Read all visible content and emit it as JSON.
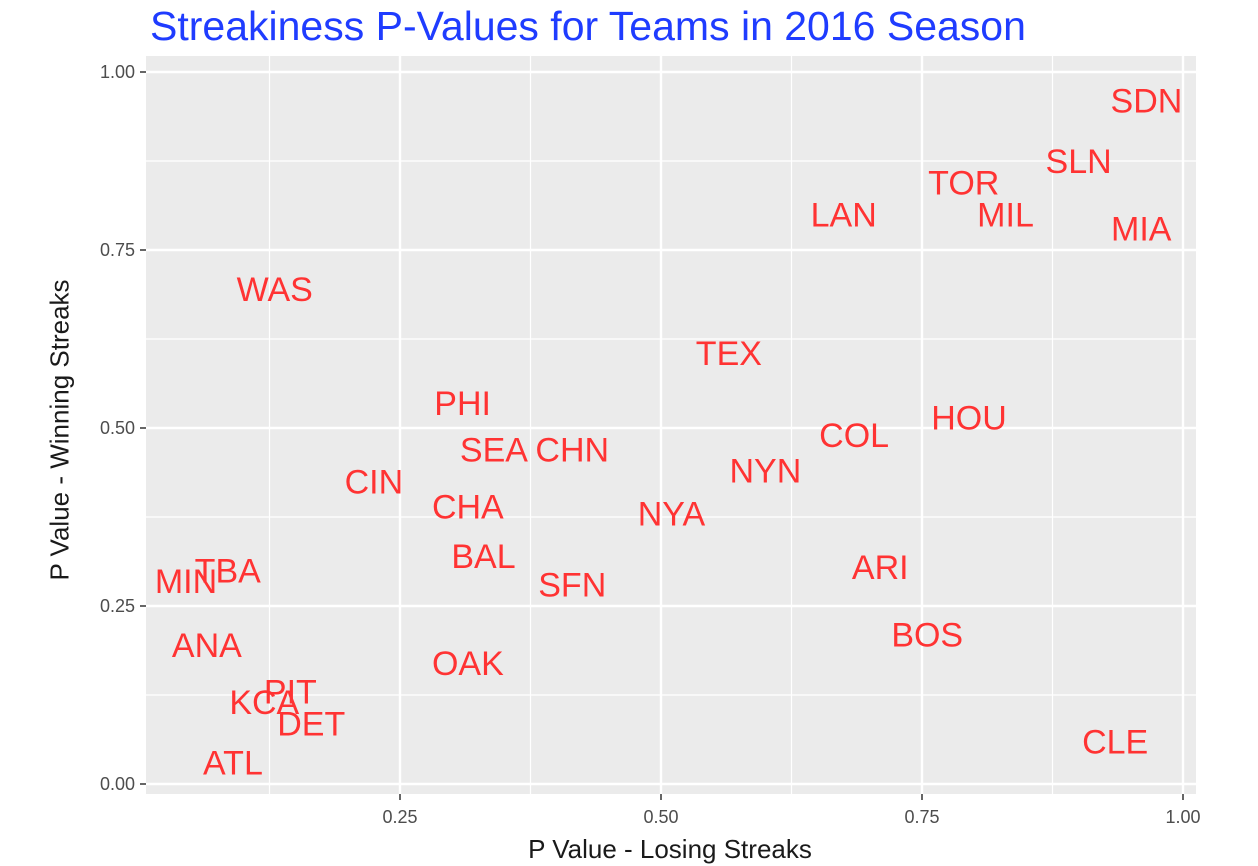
{
  "chart_data": {
    "type": "scatter",
    "title": "Streakiness P-Values for Teams in 2016 Season",
    "xlabel": "P Value - Losing Streaks",
    "ylabel": "P Value - Winning Streaks",
    "xlim": [
      0.0,
      1.0
    ],
    "ylim": [
      0.0,
      1.0
    ],
    "x_ticks": [
      0.25,
      0.5,
      0.75,
      1.0
    ],
    "x_tick_labels": [
      "0.25",
      "0.50",
      "0.75",
      "1.00"
    ],
    "y_ticks": [
      0.0,
      0.25,
      0.5,
      0.75,
      1.0
    ],
    "y_tick_labels": [
      "0.00",
      "0.25",
      "0.50",
      "0.75",
      "1.00"
    ],
    "grid": true,
    "label_color": "#ff3333",
    "points": [
      {
        "label": "SDN",
        "x": 0.965,
        "y": 0.96
      },
      {
        "label": "SLN",
        "x": 0.9,
        "y": 0.875
      },
      {
        "label": "TOR",
        "x": 0.79,
        "y": 0.845
      },
      {
        "label": "MIL",
        "x": 0.83,
        "y": 0.8
      },
      {
        "label": "LAN",
        "x": 0.675,
        "y": 0.8
      },
      {
        "label": "MIA",
        "x": 0.96,
        "y": 0.78
      },
      {
        "label": "WAS",
        "x": 0.13,
        "y": 0.695
      },
      {
        "label": "TEX",
        "x": 0.565,
        "y": 0.605
      },
      {
        "label": "PHI",
        "x": 0.31,
        "y": 0.535
      },
      {
        "label": "HOU",
        "x": 0.795,
        "y": 0.515
      },
      {
        "label": "COL",
        "x": 0.685,
        "y": 0.49
      },
      {
        "label": "SEA",
        "x": 0.34,
        "y": 0.47
      },
      {
        "label": "CHN",
        "x": 0.415,
        "y": 0.47
      },
      {
        "label": "NYN",
        "x": 0.6,
        "y": 0.44
      },
      {
        "label": "CIN",
        "x": 0.225,
        "y": 0.425
      },
      {
        "label": "CHA",
        "x": 0.315,
        "y": 0.39
      },
      {
        "label": "NYA",
        "x": 0.51,
        "y": 0.38
      },
      {
        "label": "BAL",
        "x": 0.33,
        "y": 0.32
      },
      {
        "label": "SFN",
        "x": 0.415,
        "y": 0.28
      },
      {
        "label": "ARI",
        "x": 0.71,
        "y": 0.305
      },
      {
        "label": "TBA",
        "x": 0.085,
        "y": 0.3
      },
      {
        "label": "MIN",
        "x": 0.045,
        "y": 0.285
      },
      {
        "label": "BOS",
        "x": 0.755,
        "y": 0.21
      },
      {
        "label": "ANA",
        "x": 0.065,
        "y": 0.195
      },
      {
        "label": "OAK",
        "x": 0.315,
        "y": 0.17
      },
      {
        "label": "PIT",
        "x": 0.145,
        "y": 0.13
      },
      {
        "label": "KCA",
        "x": 0.12,
        "y": 0.115
      },
      {
        "label": "DET",
        "x": 0.165,
        "y": 0.085
      },
      {
        "label": "CLE",
        "x": 0.935,
        "y": 0.06
      },
      {
        "label": "ATL",
        "x": 0.09,
        "y": 0.03
      }
    ]
  }
}
